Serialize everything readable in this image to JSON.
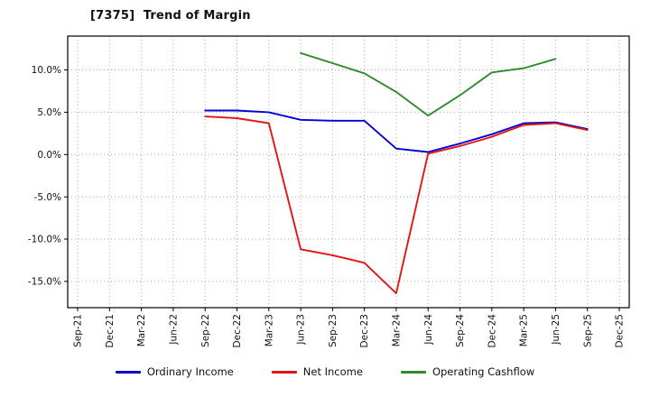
{
  "chart": {
    "title": "[7375]  Trend of Margin"
  },
  "chart_data": {
    "type": "line",
    "title": "[7375]  Trend of Margin",
    "xlabel": "",
    "ylabel": "",
    "categories": [
      "Sep-21",
      "Dec-21",
      "Mar-22",
      "Jun-22",
      "Sep-22",
      "Dec-22",
      "Mar-23",
      "Jun-23",
      "Sep-23",
      "Dec-23",
      "Mar-24",
      "Jun-24",
      "Sep-24",
      "Dec-24",
      "Mar-25",
      "Jun-25",
      "Sep-25",
      "Dec-25"
    ],
    "series": [
      {
        "name": "Ordinary Income",
        "color": "#0000d4",
        "values": [
          null,
          null,
          null,
          null,
          5.2,
          5.2,
          5.0,
          4.1,
          4.0,
          4.0,
          0.7,
          0.3,
          1.3,
          2.4,
          3.7,
          3.8,
          3.0,
          null
        ]
      },
      {
        "name": "Net Income",
        "color": "#e31414",
        "values": [
          null,
          null,
          null,
          null,
          4.5,
          4.3,
          3.7,
          -11.2,
          -11.9,
          -12.8,
          -16.4,
          0.1,
          1.0,
          2.1,
          3.5,
          3.7,
          2.9,
          null
        ]
      },
      {
        "name": "Operating Cashflow",
        "color": "#2e8b2e",
        "values": [
          null,
          null,
          null,
          null,
          null,
          null,
          null,
          12.0,
          10.8,
          9.6,
          7.4,
          4.6,
          7.0,
          9.7,
          10.2,
          11.3,
          null,
          null
        ]
      }
    ],
    "ylim": [
      -18.1,
      14.0
    ],
    "yticks": [
      10,
      5,
      0,
      -5,
      -10,
      -15
    ],
    "ytick_labels": [
      "10.0%",
      "5.0%",
      "0.0%",
      "-5.0%",
      "-10.0%",
      "-15.0%"
    ],
    "grid": true,
    "legend_position": "bottom"
  }
}
